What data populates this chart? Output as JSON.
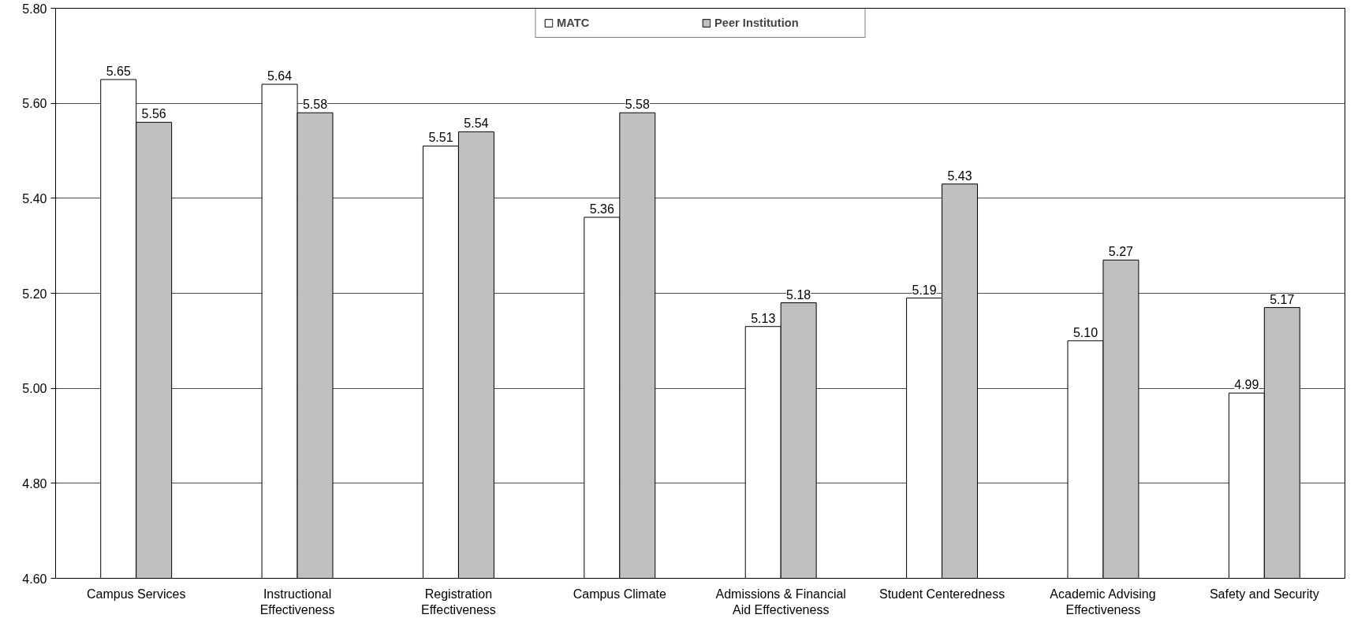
{
  "chart_data": {
    "type": "bar",
    "categories": [
      "Campus Services",
      "Instructional Effectiveness",
      "Registration Effectiveness",
      "Campus Climate",
      "Admissions & Financial Aid Effectiveness",
      "Student Centeredness",
      "Academic Advising Effectiveness",
      "Safety and Security"
    ],
    "series": [
      {
        "name": "MATC",
        "color": "#ffffff",
        "values": [
          5.65,
          5.64,
          5.51,
          5.36,
          5.13,
          5.19,
          5.1,
          4.99
        ],
        "value_labels": [
          "5.65",
          "5.64",
          "5.51",
          "5.36",
          "5.13",
          "5.19",
          "5.10",
          "4.99"
        ]
      },
      {
        "name": "Peer Institution",
        "color": "#c0c0c0",
        "values": [
          5.56,
          5.58,
          5.54,
          5.58,
          5.18,
          5.43,
          5.27,
          5.17
        ],
        "value_labels": [
          "5.56",
          "5.58",
          "5.54",
          "5.58",
          "5.18",
          "5.43",
          "5.27",
          "5.17"
        ]
      }
    ],
    "ylim": [
      4.6,
      5.8
    ],
    "yticks": [
      {
        "value": 4.6,
        "label": "4.60"
      },
      {
        "value": 4.8,
        "label": "4.80"
      },
      {
        "value": 5.0,
        "label": "5.00"
      },
      {
        "value": 5.2,
        "label": "5.20"
      },
      {
        "value": 5.4,
        "label": "5.40"
      },
      {
        "value": 5.6,
        "label": "5.60"
      },
      {
        "value": 5.8,
        "label": "5.80"
      }
    ],
    "grid": "y",
    "legend": "top"
  }
}
